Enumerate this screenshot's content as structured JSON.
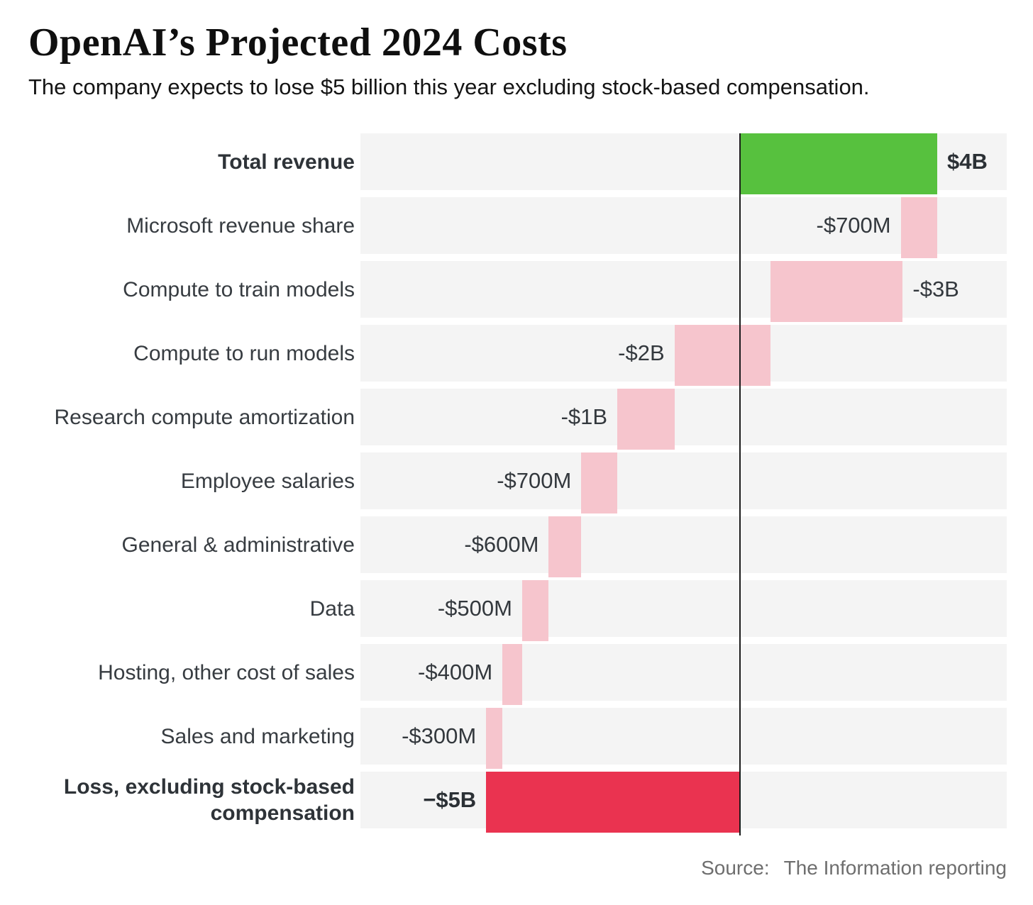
{
  "header": {
    "title": "OpenAI’s Projected 2024 Costs",
    "subtitle": "The company expects to lose $5 billion this year excluding stock-based compensation."
  },
  "source": {
    "label": "Source:",
    "text": "The Information reporting"
  },
  "chart_data": {
    "type": "bar",
    "variant": "horizontal-waterfall",
    "title": "OpenAI's Projected 2024 Costs",
    "unit": "billions of USD",
    "axis": {
      "xmin": -7.7,
      "xmax": 5.41,
      "zero_line": 0,
      "gridlines": false
    },
    "colors": {
      "revenue": "#57c13e",
      "cost": "#f6c5cd",
      "loss": "#ea3350",
      "band": "#f4f4f4",
      "baseline": "#1c1c1c"
    },
    "items": [
      {
        "label": "Total revenue",
        "value_label": "$4B",
        "value": 4.0,
        "start": 0,
        "end": 4.0,
        "role": "revenue",
        "bold": true,
        "value_side": "right"
      },
      {
        "label": "Microsoft revenue share",
        "value_label": "-$700M",
        "value": -0.7,
        "start": 3.26,
        "end": 4.0,
        "role": "cost",
        "bold": false,
        "value_side": "left"
      },
      {
        "label": "Compute to train models",
        "value_label": "-$3B",
        "value": -3.0,
        "start": 0.62,
        "end": 3.3,
        "role": "cost",
        "bold": false,
        "value_side": "right"
      },
      {
        "label": "Compute to run models",
        "value_label": "-$2B",
        "value": -2.0,
        "start": -1.33,
        "end": 0.62,
        "role": "cost",
        "bold": false,
        "value_side": "left"
      },
      {
        "label": "Research compute amortization",
        "value_label": "-$1B",
        "value": -1.0,
        "start": -2.49,
        "end": -1.33,
        "role": "cost",
        "bold": false,
        "value_side": "left"
      },
      {
        "label": "Employee salaries",
        "value_label": "-$700M",
        "value": -0.7,
        "start": -3.22,
        "end": -2.49,
        "role": "cost",
        "bold": false,
        "value_side": "left"
      },
      {
        "label": "General & administrative",
        "value_label": "-$600M",
        "value": -0.6,
        "start": -3.88,
        "end": -3.22,
        "role": "cost",
        "bold": false,
        "value_side": "left"
      },
      {
        "label": "Data",
        "value_label": "-$500M",
        "value": -0.5,
        "start": -4.42,
        "end": -3.88,
        "role": "cost",
        "bold": false,
        "value_side": "left"
      },
      {
        "label": "Hosting, other cost of sales",
        "value_label": "-$400M",
        "value": -0.4,
        "start": -4.82,
        "end": -4.42,
        "role": "cost",
        "bold": false,
        "value_side": "left"
      },
      {
        "label": "Sales and marketing",
        "value_label": "-$300M",
        "value": -0.3,
        "start": -5.15,
        "end": -4.82,
        "role": "cost",
        "bold": false,
        "value_side": "left"
      },
      {
        "label": "Loss, excluding stock-based compensation",
        "value_label": "−$5B",
        "value": -5.0,
        "start": -5.15,
        "end": 0,
        "role": "loss",
        "bold": true,
        "value_side": "left"
      }
    ]
  }
}
